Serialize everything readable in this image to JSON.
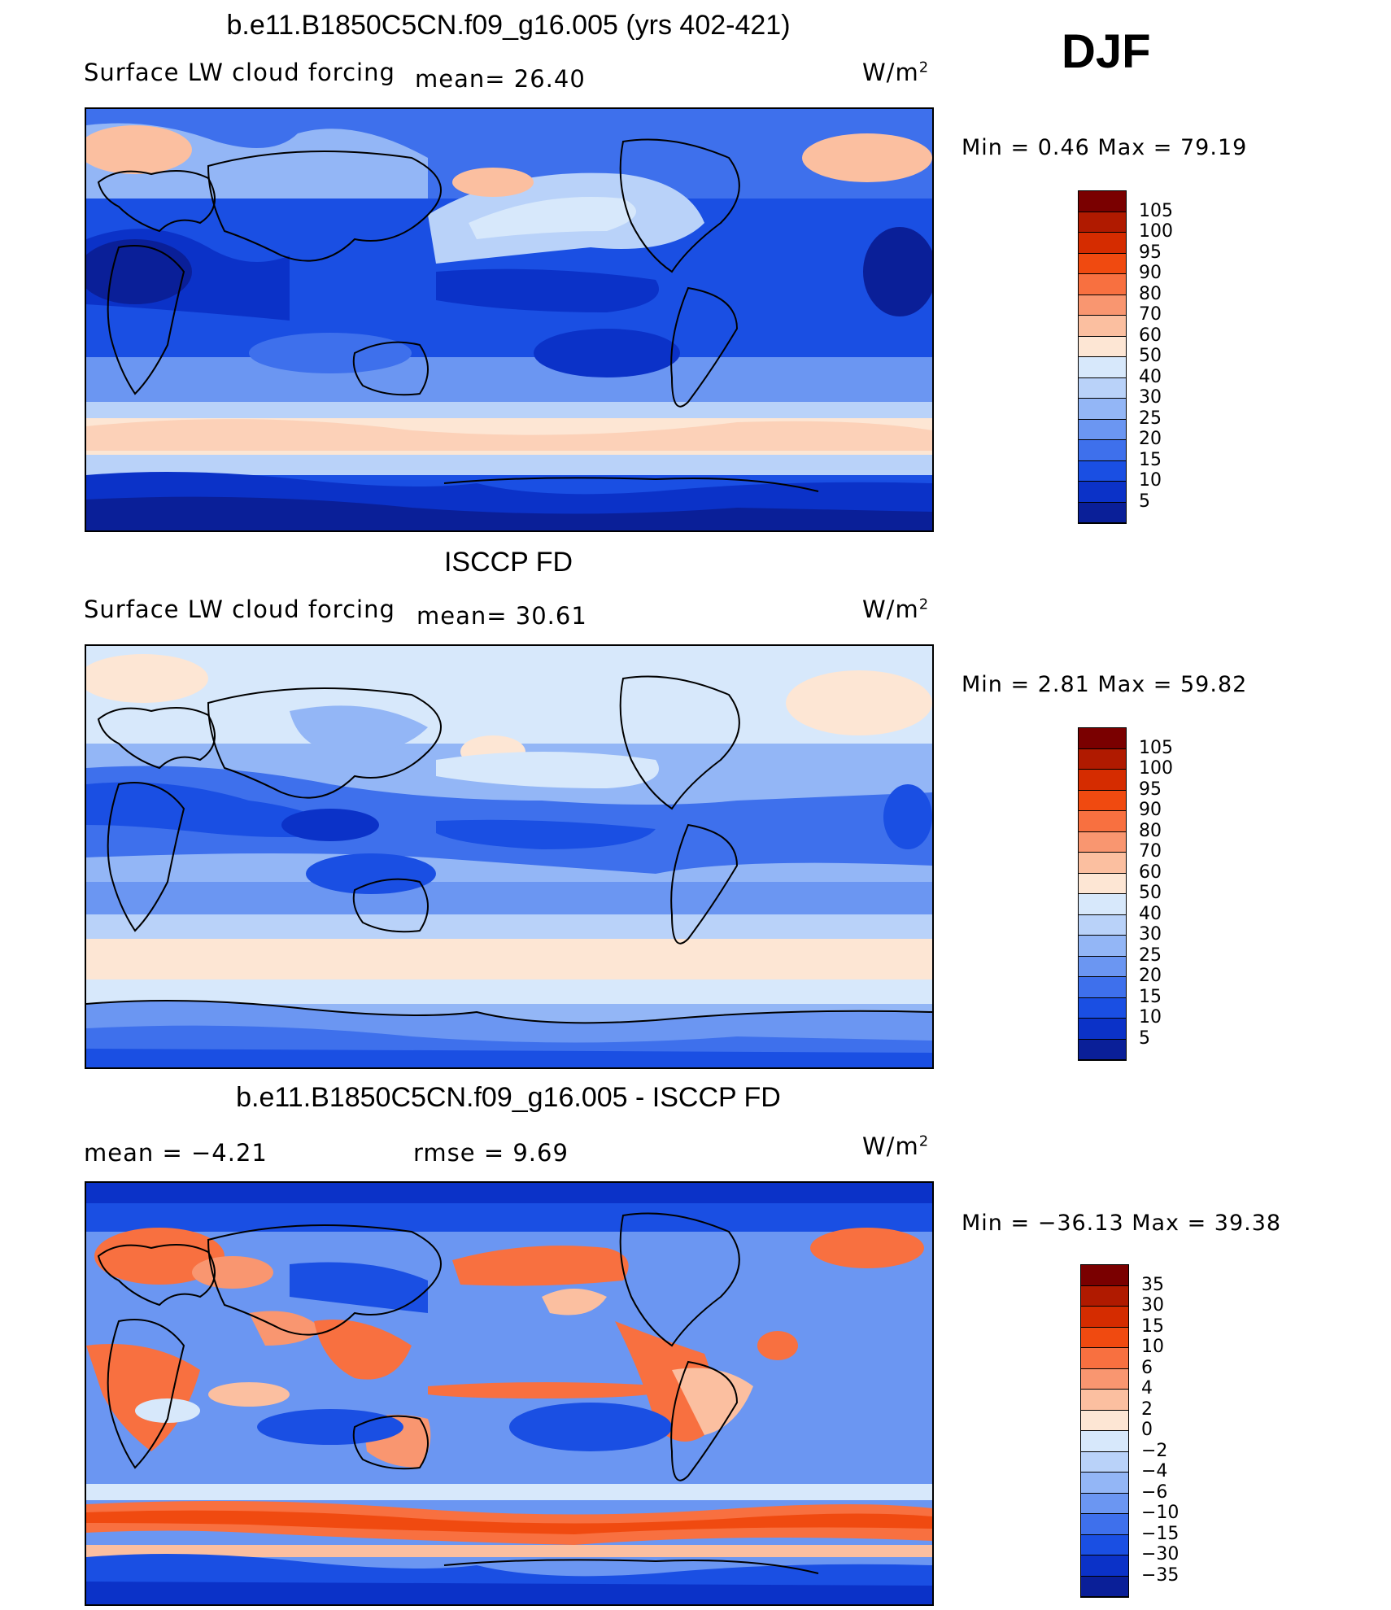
{
  "season": "DJF",
  "units_base": "W/m",
  "units_exp": "2",
  "panels": [
    {
      "title": "b.e11.B1850C5CN.f09_g16.005 (yrs 402-421)",
      "variable": "Surface LW cloud forcing",
      "stat1": "mean=   26.40",
      "stat2": "",
      "minmax": "Min =    0.46  Max =   79.19",
      "levels": [
        "105",
        "100",
        "95",
        "90",
        "80",
        "70",
        "60",
        "50",
        "40",
        "30",
        "25",
        "20",
        "15",
        "10",
        "5"
      ],
      "colors": [
        "#7a0000",
        "#b01a00",
        "#d52c00",
        "#f04a10",
        "#f87040",
        "#f99670",
        "#fbbfa0",
        "#fde6d4",
        "#d7e8fb",
        "#b9d2f9",
        "#93b6f6",
        "#6b96f2",
        "#3e70ec",
        "#1a4fe3",
        "#0b32c8",
        "#0a1f98"
      ]
    },
    {
      "title": "ISCCP FD",
      "variable": "Surface LW cloud forcing",
      "stat1": "mean=   30.61",
      "stat2": "",
      "minmax": "Min =    2.81  Max =   59.82",
      "levels": [
        "105",
        "100",
        "95",
        "90",
        "80",
        "70",
        "60",
        "50",
        "40",
        "30",
        "25",
        "20",
        "15",
        "10",
        "5"
      ],
      "colors": [
        "#7a0000",
        "#b01a00",
        "#d52c00",
        "#f04a10",
        "#f87040",
        "#f99670",
        "#fbbfa0",
        "#fde6d4",
        "#d7e8fb",
        "#b9d2f9",
        "#93b6f6",
        "#6b96f2",
        "#3e70ec",
        "#1a4fe3",
        "#0b32c8",
        "#0a1f98"
      ]
    },
    {
      "title": "b.e11.B1850C5CN.f09_g16.005 - ISCCP FD",
      "variable": "",
      "stat1": "mean =   −4.21",
      "stat2": "rmse =    9.69",
      "minmax": "Min = −36.13  Max =   39.38",
      "levels": [
        "35",
        "30",
        "15",
        "10",
        "6",
        "4",
        "2",
        "0",
        "−2",
        "−4",
        "−6",
        "−10",
        "−15",
        "−30",
        "−35"
      ],
      "colors": [
        "#7a0000",
        "#b01a00",
        "#d52c00",
        "#f04a10",
        "#f87040",
        "#f99670",
        "#fbbfa0",
        "#fde6d4",
        "#d7e8fb",
        "#b9d2f9",
        "#93b6f6",
        "#6b96f2",
        "#3e70ec",
        "#1a4fe3",
        "#0b32c8",
        "#0a1f98"
      ]
    }
  ]
}
